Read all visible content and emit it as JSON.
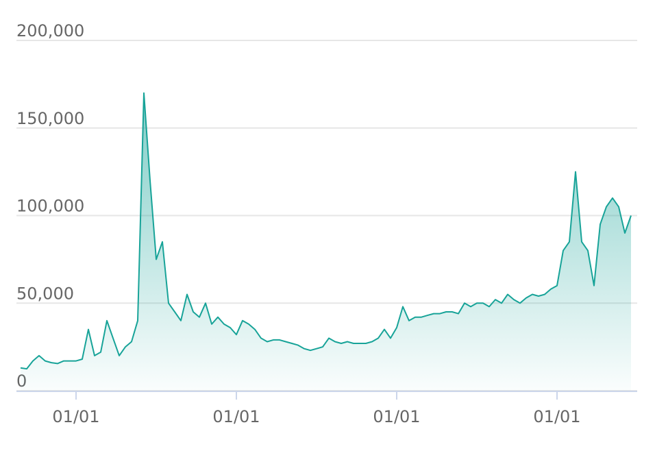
{
  "chart_data": {
    "type": "area",
    "categories": [
      null,
      null,
      null,
      null,
      null,
      null,
      null,
      null,
      null,
      "01/01",
      null,
      null,
      null,
      null,
      null,
      null,
      null,
      null,
      null,
      null,
      null,
      null,
      null,
      null,
      null,
      null,
      null,
      null,
      null,
      null,
      null,
      null,
      null,
      null,
      null,
      "01/01",
      null,
      null,
      null,
      null,
      null,
      null,
      null,
      null,
      null,
      null,
      null,
      null,
      null,
      null,
      null,
      null,
      null,
      null,
      null,
      null,
      null,
      null,
      null,
      null,
      null,
      "01/01",
      null,
      null,
      null,
      null,
      null,
      null,
      null,
      null,
      null,
      null,
      null,
      null,
      null,
      null,
      null,
      null,
      null,
      null,
      null,
      null,
      null,
      null,
      null,
      null,
      null,
      "01/01",
      null,
      null,
      null,
      null,
      null,
      null,
      null,
      null,
      null,
      null,
      null,
      null
    ],
    "values": [
      13000,
      12500,
      17000,
      20000,
      17000,
      16000,
      15500,
      17000,
      17000,
      17000,
      18000,
      35000,
      20000,
      22000,
      40000,
      30000,
      20000,
      25000,
      28000,
      40000,
      170000,
      120000,
      75000,
      85000,
      50000,
      45000,
      40000,
      55000,
      45000,
      42000,
      50000,
      38000,
      42000,
      38000,
      36000,
      32000,
      40000,
      38000,
      35000,
      30000,
      28000,
      29000,
      29000,
      28000,
      27000,
      26000,
      24000,
      23000,
      24000,
      25000,
      30000,
      28000,
      27000,
      28000,
      27000,
      27000,
      27000,
      28000,
      30000,
      35000,
      30000,
      36000,
      48000,
      40000,
      42000,
      42000,
      43000,
      44000,
      44000,
      45000,
      45000,
      44000,
      50000,
      48000,
      50000,
      50000,
      48000,
      52000,
      50000,
      55000,
      52000,
      50000,
      53000,
      55000,
      54000,
      55000,
      58000,
      60000,
      80000,
      85000,
      125000,
      85000,
      80000,
      60000,
      95000,
      105000,
      110000,
      105000,
      90000,
      100000
    ],
    "color": "#17a398",
    "ylim": [
      0,
      200000
    ],
    "yticks": [
      0,
      {
        "value": 50000,
        "label": "50,000"
      },
      {
        "value": 100000,
        "label": "100,000"
      },
      {
        "value": 150000,
        "label": "150,000"
      },
      {
        "value": 200000,
        "label": "200,000"
      }
    ],
    "grid": true
  }
}
